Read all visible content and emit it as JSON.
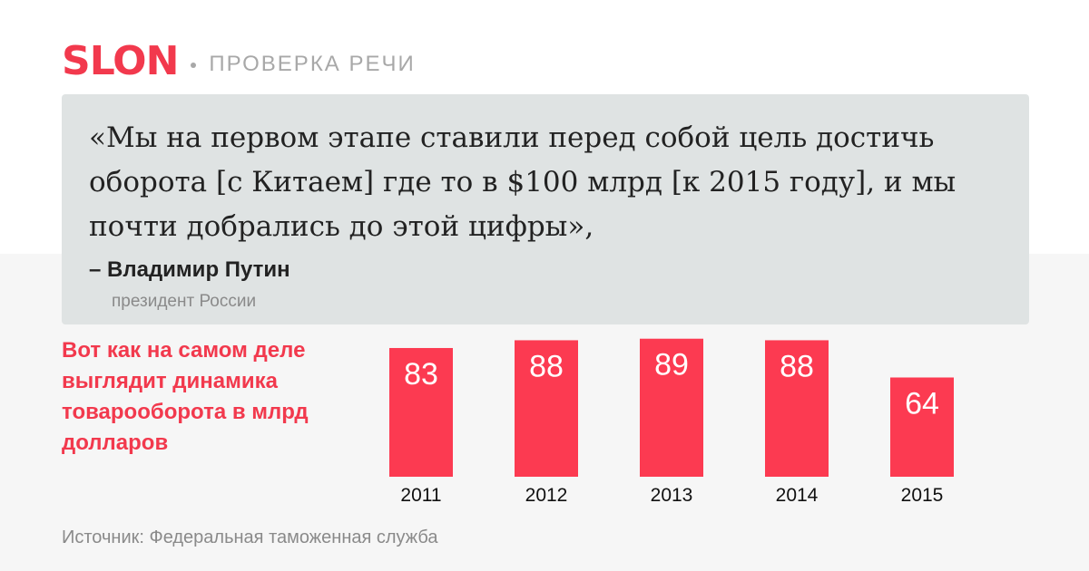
{
  "header": {
    "logo": "SLON",
    "section": "ПРОВЕРКА РЕЧИ"
  },
  "quote": {
    "text": "«Мы на первом этапе ставили перед собой цель достичь оборота [с Китаем] где то в $100 млрд [к 2015 году], и мы почти добрались до этой цифры»,",
    "author": "– Владимир Путин",
    "role": "президент России"
  },
  "caption": "Вот как на самом деле выглядит динамика товарооборота в млрд долларов",
  "source": "Источник: Федеральная таможенная служба",
  "colors": {
    "accent": "#f2394d",
    "bar": "#fc3a51",
    "quote_bg": "#dfe3e3"
  },
  "chart_data": {
    "type": "bar",
    "categories": [
      "2011",
      "2012",
      "2013",
      "2014",
      "2015"
    ],
    "values": [
      83,
      88,
      89,
      88,
      64
    ],
    "ylim": [
      0,
      90
    ],
    "grid": false,
    "data_labels": true
  }
}
